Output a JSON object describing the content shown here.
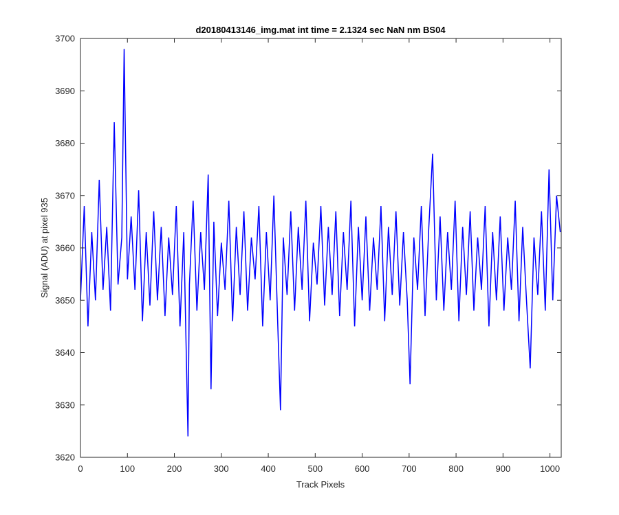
{
  "chart_data": {
    "type": "line",
    "title": "d20180413146_img.mat int time = 2.1324 sec  NaN nm BS04",
    "xlabel": "Track Pixels",
    "ylabel": "Signal (ADU) at pixel 935",
    "xlim": [
      0,
      1024
    ],
    "ylim": [
      3620,
      3700
    ],
    "xticks": [
      0,
      100,
      200,
      300,
      400,
      500,
      600,
      700,
      800,
      900,
      1000
    ],
    "yticks": [
      3620,
      3630,
      3640,
      3650,
      3660,
      3670,
      3680,
      3690,
      3700
    ],
    "grid": false,
    "legend": "none",
    "line_color": "#0000ff",
    "series": [
      {
        "x": [
          0,
          8,
          16,
          24,
          32,
          40,
          48,
          56,
          64,
          72,
          80,
          88,
          93,
          100,
          108,
          116,
          124,
          132,
          140,
          148,
          156,
          164,
          172,
          180,
          188,
          196,
          204,
          212,
          220,
          229,
          232,
          240,
          248,
          256,
          264,
          272,
          278,
          284,
          292,
          300,
          308,
          316,
          324,
          332,
          340,
          348,
          356,
          364,
          372,
          380,
          388,
          396,
          404,
          412,
          420,
          426,
          432,
          440,
          448,
          456,
          464,
          472,
          480,
          488,
          496,
          504,
          512,
          520,
          528,
          536,
          544,
          552,
          560,
          568,
          576,
          584,
          592,
          600,
          608,
          616,
          624,
          632,
          640,
          648,
          656,
          664,
          672,
          680,
          688,
          696,
          702,
          710,
          718,
          726,
          734,
          742,
          750,
          758,
          766,
          774,
          782,
          790,
          798,
          806,
          814,
          822,
          830,
          838,
          846,
          854,
          862,
          870,
          878,
          886,
          894,
          902,
          910,
          918,
          926,
          934,
          942,
          950,
          958,
          966,
          974,
          982,
          990,
          998,
          1006,
          1014,
          1022
        ],
        "y": [
          3650,
          3668,
          3645,
          3663,
          3650,
          3673,
          3652,
          3664,
          3648,
          3684,
          3653,
          3662,
          3698,
          3654,
          3666,
          3652,
          3671,
          3646,
          3663,
          3649,
          3667,
          3650,
          3664,
          3647,
          3662,
          3651,
          3668,
          3645,
          3663,
          3624,
          3653,
          3669,
          3648,
          3663,
          3652,
          3674,
          3633,
          3665,
          3647,
          3661,
          3652,
          3669,
          3646,
          3664,
          3651,
          3667,
          3648,
          3662,
          3654,
          3668,
          3645,
          3663,
          3650,
          3670,
          3646,
          3629,
          3662,
          3651,
          3667,
          3648,
          3664,
          3652,
          3669,
          3646,
          3661,
          3653,
          3668,
          3649,
          3664,
          3651,
          3667,
          3647,
          3663,
          3652,
          3669,
          3645,
          3664,
          3650,
          3666,
          3648,
          3662,
          3652,
          3668,
          3646,
          3664,
          3651,
          3667,
          3649,
          3663,
          3650,
          3634,
          3662,
          3652,
          3668,
          3647,
          3664,
          3678,
          3650,
          3666,
          3648,
          3663,
          3652,
          3669,
          3646,
          3664,
          3651,
          3667,
          3648,
          3662,
          3652,
          3668,
          3645,
          3663,
          3650,
          3666,
          3648,
          3662,
          3652,
          3669,
          3646,
          3664,
          3650,
          3637,
          3662,
          3651,
          3667,
          3648,
          3675,
          3650,
          3670,
          3663
        ]
      }
    ]
  }
}
